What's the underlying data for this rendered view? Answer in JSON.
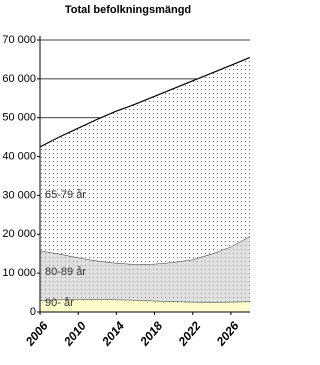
{
  "chart_data": {
    "type": "stacked_area",
    "title": "Total befolkningsmängd",
    "x": [
      2006,
      2008,
      2010,
      2012,
      2014,
      2016,
      2018,
      2020,
      2022,
      2024,
      2026,
      2028
    ],
    "series": [
      {
        "name": "90- år",
        "color": "#ffffcc",
        "values": [
          3000,
          3200,
          3300,
          3300,
          3200,
          3100,
          2900,
          2700,
          2600,
          2500,
          2600,
          2700
        ]
      },
      {
        "name": "80-89 år",
        "color": "#e0e0e0",
        "values": [
          12800,
          11800,
          10700,
          9900,
          9400,
          9200,
          9500,
          10100,
          10900,
          12500,
          14200,
          16800
        ]
      },
      {
        "name": "65-79 år",
        "color": "#ffffff",
        "values": [
          26700,
          30000,
          33300,
          36400,
          39100,
          41200,
          43100,
          44700,
          46000,
          46500,
          46700,
          46000
        ]
      }
    ],
    "xlim": [
      2006,
      2028
    ],
    "xticks": [
      2006,
      2010,
      2014,
      2018,
      2022,
      2026
    ],
    "ylim": [
      0,
      70000
    ],
    "yticks": [
      0,
      {
        "value": 10000,
        "label": "10 000"
      },
      {
        "value": 20000,
        "label": "20 000"
      },
      {
        "value": 30000,
        "label": "30 000"
      },
      {
        "value": 40000,
        "label": "40 000"
      },
      {
        "value": 50000,
        "label": "50 000"
      },
      {
        "value": 60000,
        "label": "60 000"
      },
      {
        "value": 70000,
        "label": "70 000"
      }
    ],
    "grid": true
  }
}
